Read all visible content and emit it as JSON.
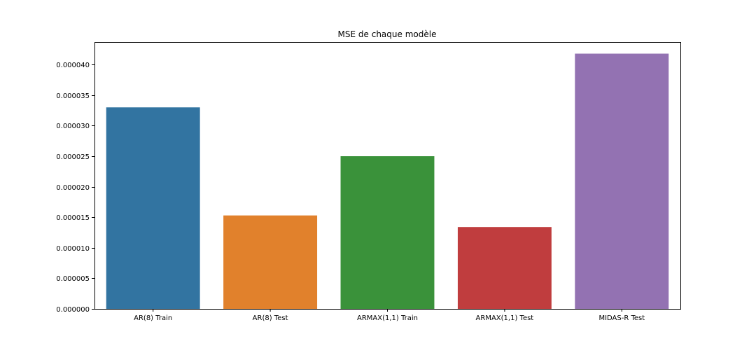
{
  "chart_data": {
    "type": "bar",
    "title": "MSE de chaque modèle",
    "xlabel": "",
    "ylabel": "",
    "categories": [
      "AR(8) Train",
      "AR(8) Test",
      "ARMAX(1,1) Train",
      "ARMAX(1,1) Test",
      "MIDAS-R Test"
    ],
    "values": [
      3.3e-05,
      1.53e-05,
      2.5e-05,
      1.34e-05,
      4.18e-05
    ],
    "colors": [
      "#3274a1",
      "#e1812c",
      "#3a923a",
      "#c03d3e",
      "#9372b2"
    ],
    "ylim": [
      0,
      4.37e-05
    ],
    "yticks": [
      "0.000000",
      "0.000005",
      "0.000010",
      "0.000015",
      "0.000020",
      "0.000025",
      "0.000030",
      "0.000035",
      "0.000040"
    ],
    "ytick_values": [
      0,
      5e-06,
      1e-05,
      1.5e-05,
      2e-05,
      2.5e-05,
      3e-05,
      3.5e-05,
      4e-05
    ],
    "grid": false,
    "legend": "none"
  }
}
